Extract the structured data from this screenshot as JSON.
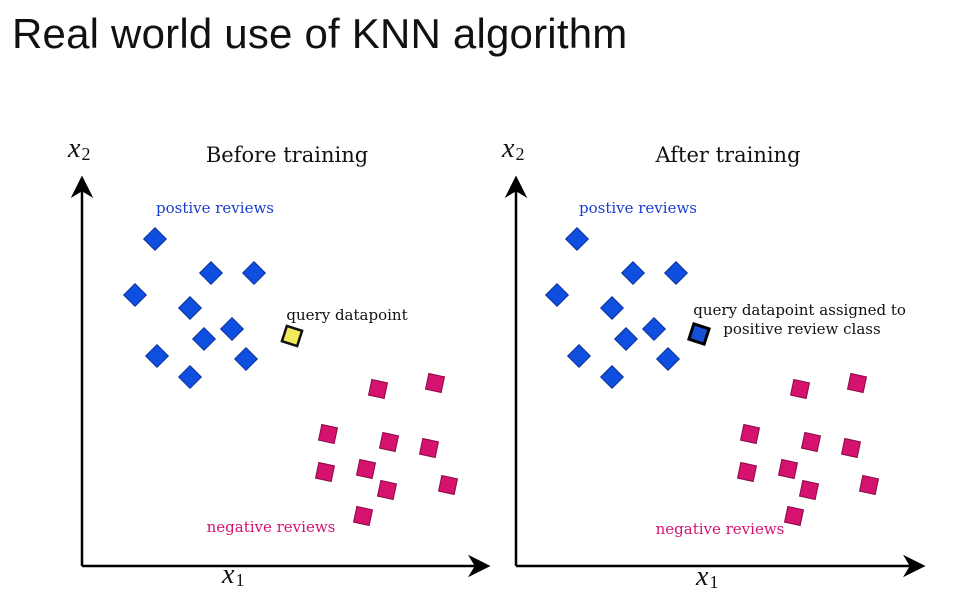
{
  "slide": {
    "title": "Real world use of KNN algorithm"
  },
  "colors": {
    "positive": "#0f4fe0",
    "negative": "#d6126f",
    "query_before": "#f2ea5c",
    "query_after": "#1550d8",
    "axis": "#000000"
  },
  "panels": [
    {
      "title": "Before training",
      "y_axis": {
        "symbol": "x",
        "subscript": "2"
      },
      "x_axis": {
        "symbol": "x",
        "subscript": "1"
      },
      "positive_label": "postive reviews",
      "negative_label": "negative reviews",
      "query_label_lines": [
        "query datapoint"
      ],
      "query_state": "unlabeled"
    },
    {
      "title": "After training",
      "y_axis": {
        "symbol": "x",
        "subscript": "2"
      },
      "x_axis": {
        "symbol": "x",
        "subscript": "1"
      },
      "positive_label": "postive reviews",
      "negative_label": "negative reviews",
      "query_label_lines": [
        "query datapoint assigned to",
        "positive review class"
      ],
      "query_state": "positive"
    }
  ]
}
